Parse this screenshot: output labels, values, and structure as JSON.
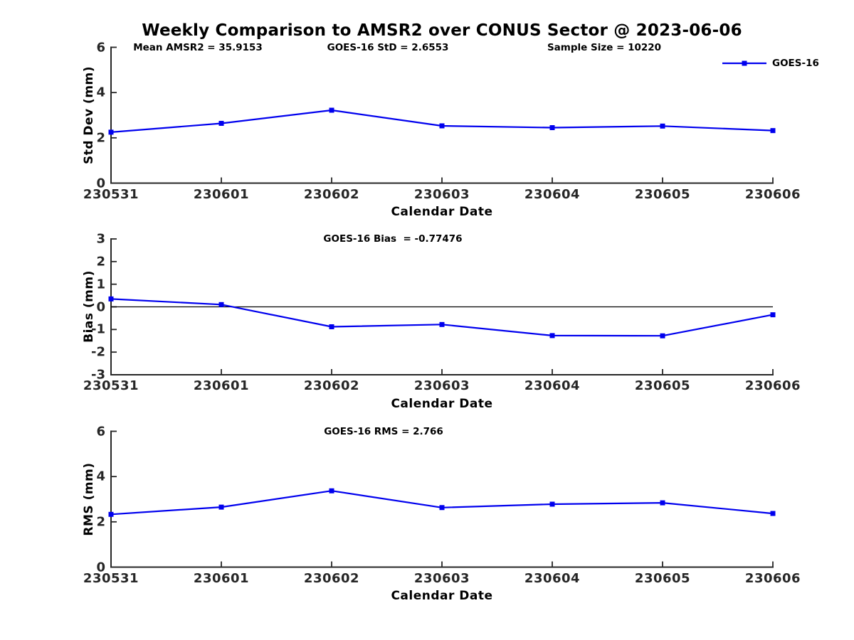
{
  "title": "Weekly Comparison to AMSR2 over CONUS Sector @ 2023-06-06",
  "legend": {
    "label": "GOES-16",
    "marker": "filled-square",
    "line_color": "#0000EE"
  },
  "colors": {
    "series_line": "#0000EE",
    "axis": "#262626",
    "text": "#000000",
    "zero_line": "#000000",
    "background": "#FFFFFF"
  },
  "chart_data": [
    {
      "type": "line",
      "panel": "std-dev",
      "title": "",
      "xlabel": "Calendar Date",
      "ylabel": "Std Dev (mm)",
      "categories": [
        "230531",
        "230601",
        "230602",
        "230603",
        "230604",
        "230605",
        "230606"
      ],
      "series": [
        {
          "name": "GOES-16",
          "values": [
            2.25,
            2.64,
            3.22,
            2.53,
            2.45,
            2.52,
            2.32
          ]
        }
      ],
      "ylim": [
        0,
        6
      ],
      "yticks": [
        0,
        2,
        4,
        6
      ],
      "grid": false,
      "zero_line": false,
      "marker": "square",
      "legend_position": "top-right-outside",
      "annotations": [
        {
          "text": "Mean AMSR2 = 35.9153",
          "x_center": 278
        },
        {
          "text": "GOES-16 StD = 2.6553",
          "x_center": 545
        },
        {
          "text": "Sample Size = 10220",
          "x_center": 849
        }
      ]
    },
    {
      "type": "line",
      "panel": "bias",
      "title": "",
      "xlabel": "Calendar Date",
      "ylabel": "Bias (mm)",
      "categories": [
        "230531",
        "230601",
        "230602",
        "230603",
        "230604",
        "230605",
        "230606"
      ],
      "series": [
        {
          "name": "GOES-16",
          "values": [
            0.35,
            0.1,
            -0.88,
            -0.78,
            -1.27,
            -1.28,
            -0.35
          ]
        }
      ],
      "ylim": [
        -3,
        3
      ],
      "yticks": [
        -3,
        -2,
        -1,
        0,
        1,
        2,
        3
      ],
      "grid": false,
      "zero_line": true,
      "marker": "square",
      "annotations": [
        {
          "text": "GOES-16 Bias  = -0.77476",
          "x_center": 552
        }
      ]
    },
    {
      "type": "line",
      "panel": "rms",
      "title": "",
      "xlabel": "Calendar Date",
      "ylabel": "RMS (mm)",
      "categories": [
        "230531",
        "230601",
        "230602",
        "230603",
        "230604",
        "230605",
        "230606"
      ],
      "series": [
        {
          "name": "GOES-16",
          "values": [
            2.33,
            2.65,
            3.37,
            2.63,
            2.78,
            2.84,
            2.37
          ]
        }
      ],
      "ylim": [
        0,
        6
      ],
      "yticks": [
        0,
        2,
        4,
        6
      ],
      "grid": false,
      "zero_line": false,
      "marker": "square",
      "annotations": [
        {
          "text": "GOES-16 RMS = 2.766",
          "x_center": 539
        }
      ]
    }
  ]
}
